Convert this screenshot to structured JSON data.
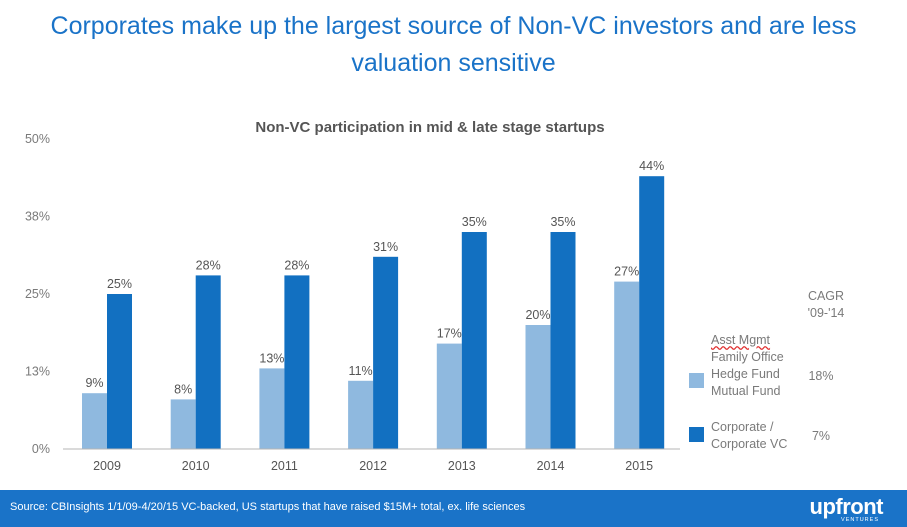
{
  "headline": {
    "line1": "Corporates make up the largest source of Non-VC investors and are less",
    "line2": "valuation sensitive"
  },
  "colors": {
    "accent": "#1a73c8",
    "series_light": "#8fb9df",
    "series_dark": "#1270c1",
    "text_gray": "#7a7a7a"
  },
  "chart_data": {
    "type": "bar",
    "title": "Non-VC participation in mid & late stage startups",
    "categories": [
      "2009",
      "2010",
      "2011",
      "2012",
      "2013",
      "2014",
      "2015"
    ],
    "series": [
      {
        "values": [
          9,
          8,
          13,
          11,
          17,
          20,
          27
        ],
        "labels": [
          "9%",
          "8%",
          "13%",
          "11%",
          "17%",
          "20%",
          "27%"
        ],
        "color": "#8fb9df"
      },
      {
        "values": [
          25,
          28,
          28,
          31,
          35,
          35,
          44
        ],
        "labels": [
          "25%",
          "28%",
          "28%",
          "31%",
          "35%",
          "35%",
          "44%"
        ],
        "color": "#1270c1"
      }
    ],
    "yticks": [
      "0%",
      "13%",
      "25%",
      "38%",
      "50%"
    ],
    "ylim": [
      0,
      50
    ],
    "xlabel": "",
    "ylabel": "",
    "legend_position": "right",
    "grid": false
  },
  "legend": {
    "cagr_header_line1": "CAGR",
    "cagr_header_line2": "'09-'14",
    "items": [
      {
        "lines": [
          "Asst Mgmt",
          "Family Office",
          "Hedge Fund",
          "Mutual Fund"
        ],
        "cagr": "18%"
      },
      {
        "lines": [
          "Corporate /",
          "Corporate VC"
        ],
        "cagr": "7%"
      }
    ]
  },
  "footer": {
    "source": "Source: CBInsights 1/1/09-4/20/15 VC-backed, US startups that have raised $15M+ total, ex. life sciences",
    "logo": "upfront",
    "logo_sub": "VENTURES"
  }
}
